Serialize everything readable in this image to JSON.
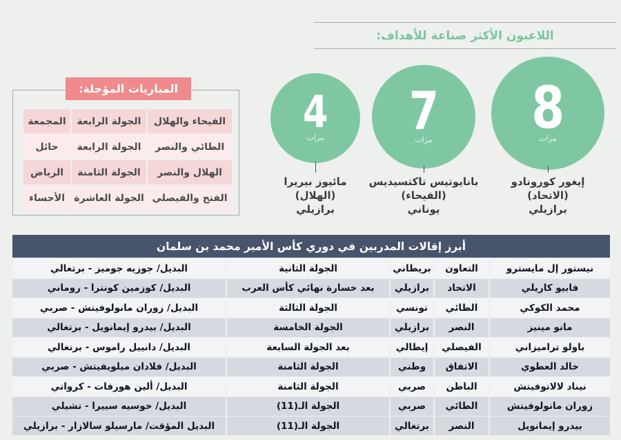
{
  "page": {
    "background": "#eef0ee"
  },
  "colors": {
    "green_accent": "#7fc7a3",
    "pink_accent": "#f08a8c",
    "pink_row_dark": "#f6d7d8",
    "pink_row_light": "#fcebec",
    "table_header_slate": "#47546c",
    "table_row_gray": "#d5d9e0",
    "table_row_light": "#f2f4f6"
  },
  "assists": {
    "title": "اللاعبون الأكثر صناعة للأهداف:",
    "unit": "مرات",
    "players": [
      {
        "count": "8",
        "name": "إيغور كورونادو",
        "club": "(الاتحاد)",
        "nationality": "برازيلي"
      },
      {
        "count": "7",
        "name": "بانايوتيس تاكتسيديس",
        "club": "(الفيحاء)",
        "nationality": "يوناني"
      },
      {
        "count": "4",
        "name": "مائيوز بيريرا",
        "club": "(الهلال)",
        "nationality": "برازيلي"
      }
    ]
  },
  "postponed": {
    "title": "المباريات المؤجلة:",
    "rows": [
      {
        "match": "الفيحاء والهلال",
        "round": "الجولة الرابعة",
        "city": "المجمعة"
      },
      {
        "match": "الطائي والنصر",
        "round": "الجولة الرابعة",
        "city": "حائل"
      },
      {
        "match": "الهلال والنصر",
        "round": "الجولة الثامنة",
        "city": "الرياض"
      },
      {
        "match": "الفتح والفيصلي",
        "round": "الجولة العاشرة",
        "city": "الأحساء"
      }
    ]
  },
  "dismissals": {
    "title": "أبرز إقالات المدربين في دوري كأس الأمير محمد بن سلمان",
    "rows": [
      {
        "coach": "نيستور إل مايسترو",
        "club": "التعاون",
        "nationality": "بريطاني",
        "round": "الجولة الثانية",
        "substitute": "البديل/ جوزيه جوميز - برتغالي"
      },
      {
        "coach": "فابيو كاريلي",
        "club": "الاتحاد",
        "nationality": "برازيلي",
        "round": "بعد خسارة نهائي كأس العرب",
        "substitute": "البديل/ كوزمين كونترا - روماني"
      },
      {
        "coach": "محمد الكوكي",
        "club": "الطائي",
        "nationality": "تونسي",
        "round": "الجولة الثالثة",
        "substitute": "البديل/ زوران مانولوفيتش - صربي"
      },
      {
        "coach": "مانو مينيز",
        "club": "النصر",
        "nationality": "برازيلي",
        "round": "الجولة الخامسة",
        "substitute": "البديل/ بيدرو إيمانويل - برتغالي"
      },
      {
        "coach": "باولو تراميزاني",
        "club": "الفيصلي",
        "nationality": "إيطالي",
        "round": "بعد الجولة السابعة",
        "substitute": "البديل/ دانييل راموس - برتغالي"
      },
      {
        "coach": "خالد العطوي",
        "club": "الاتفاق",
        "nationality": "وطني",
        "round": "الجولة الثامنة",
        "substitute": "البديل/ فلادان ميلويفيتش - صربي"
      },
      {
        "coach": "نيناد لالاتوفيتش",
        "club": "الباطن",
        "nationality": "صربي",
        "round": "الجولة الثامنة",
        "substitute": "البديل/ ألين هورفات - كرواتي"
      },
      {
        "coach": "زوران مانولوفيتش",
        "club": "الطائي",
        "nationality": "صربي",
        "round": "الجولة الـ(11)",
        "substitute": "البديل/ خوسيه سييرا - تشيلي"
      },
      {
        "coach": "بيدرو إيمانويل",
        "club": "النصر",
        "nationality": "برتغالي",
        "round": "الجولة الـ(11)",
        "substitute": "البديل المؤقت/ مارسيلو سالازار - برازيلي"
      }
    ]
  }
}
